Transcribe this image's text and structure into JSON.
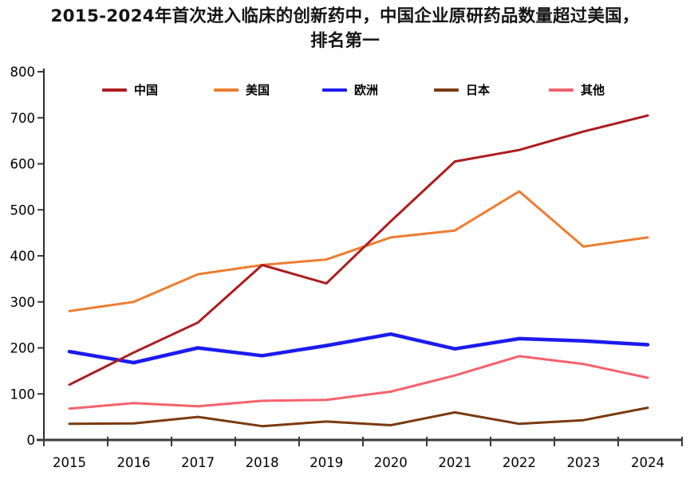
{
  "title": {
    "line1": "2015-2024年首次进入临床的创新药中，中国企业原研药品数量超过美国，",
    "line2": "排名第一"
  },
  "chart_data": {
    "type": "line",
    "title": "2015-2024年首次进入临床的创新药中，中国企业原研药品数量超过美国，排名第一",
    "categories": [
      "2015",
      "2016",
      "2017",
      "2018",
      "2019",
      "2020",
      "2021",
      "2022",
      "2023",
      "2024"
    ],
    "series": [
      {
        "key": "china",
        "name": "中国",
        "color": "#ae1c1e",
        "values": [
          120,
          190,
          255,
          380,
          340,
          475,
          605,
          630,
          670,
          705
        ]
      },
      {
        "key": "usa",
        "name": "美国",
        "color": "#ed7d31",
        "values": [
          280,
          300,
          360,
          380,
          392,
          440,
          455,
          540,
          420,
          440
        ]
      },
      {
        "key": "europe",
        "name": "欧洲",
        "color": "#1b1bef",
        "values": [
          192,
          168,
          200,
          183,
          205,
          230,
          198,
          220,
          215,
          207
        ]
      },
      {
        "key": "japan",
        "name": "日本",
        "color": "#7a3a10",
        "values": [
          35,
          36,
          50,
          30,
          40,
          32,
          60,
          35,
          43,
          70
        ]
      },
      {
        "key": "other",
        "name": "其他",
        "color": "#f4626b",
        "values": [
          68,
          80,
          73,
          85,
          87,
          105,
          140,
          182,
          165,
          135
        ]
      }
    ],
    "xlabel": "",
    "ylabel": "",
    "ylim": [
      0,
      800
    ],
    "yticks": [
      0,
      100,
      200,
      300,
      400,
      500,
      600,
      700,
      800
    ],
    "grid": false,
    "legend_position": "top-inside",
    "axis_color": "#3a3a3a"
  }
}
